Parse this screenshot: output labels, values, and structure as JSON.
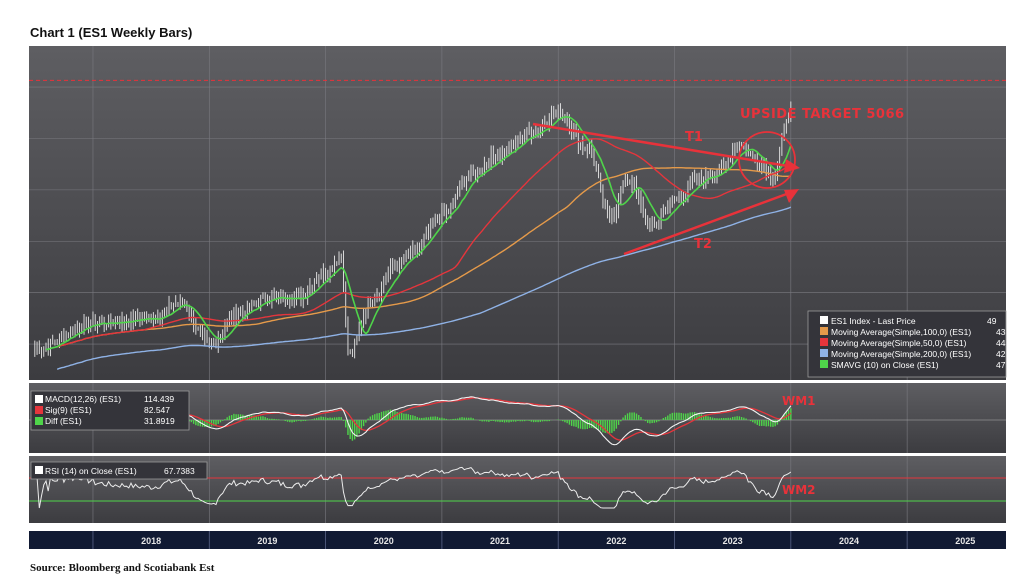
{
  "page": {
    "title": "Chart 1 (ES1 Weekly Bars)",
    "source": "Source: Bloomberg and Scotiabank Est"
  },
  "chart_data": {
    "type": "line",
    "instrument": "ES1",
    "x_axis": {
      "tick_labels": [
        "2018",
        "2019",
        "2020",
        "2021",
        "2022",
        "2023",
        "2024",
        "2025"
      ]
    },
    "price_panel": {
      "legend": [
        {
          "label": "ES1 Index - Last Price",
          "value": "49",
          "color": "#ffffff"
        },
        {
          "label": "Moving Average(Simple,100,0)  (ES1)",
          "value": "43",
          "color": "#e59a4a"
        },
        {
          "label": "Moving Average(Simple,50,0)  (ES1)",
          "value": "44",
          "color": "#e5353c"
        },
        {
          "label": "Moving Average(Simple,200,0)  (ES1)",
          "value": "42",
          "color": "#8fb2e6"
        },
        {
          "label": "SMAVG (10)  on Close (ES1)",
          "value": "47",
          "color": "#4fd44a"
        }
      ],
      "annotations": {
        "target": "UPSIDE TARGET 5066",
        "t1": "T1",
        "t2": "T2"
      },
      "target_level": 5066,
      "series_points": {
        "x": [
          2017.5,
          2018.0,
          2018.5,
          2018.75,
          2019.0,
          2019.25,
          2019.5,
          2019.75,
          2020.0,
          2020.13,
          2020.2,
          2020.4,
          2020.6,
          2020.75,
          2021.0,
          2021.25,
          2021.5,
          2021.75,
          2022.0,
          2022.25,
          2022.45,
          2022.6,
          2022.8,
          2023.0,
          2023.2,
          2023.4,
          2023.55,
          2023.75,
          2023.85,
          2024.0
        ],
        "close": [
          2450,
          2700,
          2750,
          2900,
          2500,
          2800,
          2950,
          2950,
          3200,
          3350,
          2400,
          2950,
          3250,
          3400,
          3750,
          4150,
          4350,
          4550,
          4750,
          4400,
          3750,
          4100,
          3650,
          3900,
          4100,
          4200,
          4450,
          4250,
          4150,
          4800
        ]
      }
    },
    "macd_panel": {
      "legend": [
        {
          "label": "MACD(12,26)  (ES1)",
          "value": "114.439",
          "color": "#ffffff"
        },
        {
          "label": "Sig(9)  (ES1)",
          "value": "82.547",
          "color": "#e5353c"
        },
        {
          "label": "Diff  (ES1)",
          "value": "31.8919",
          "color": "#4fd44a"
        }
      ],
      "annotation": "WM1"
    },
    "rsi_panel": {
      "legend": [
        {
          "label": "RSI (14)  on Close (ES1)",
          "value": "67.7383",
          "color": "#ffffff"
        }
      ],
      "annotation": "WM2"
    }
  }
}
